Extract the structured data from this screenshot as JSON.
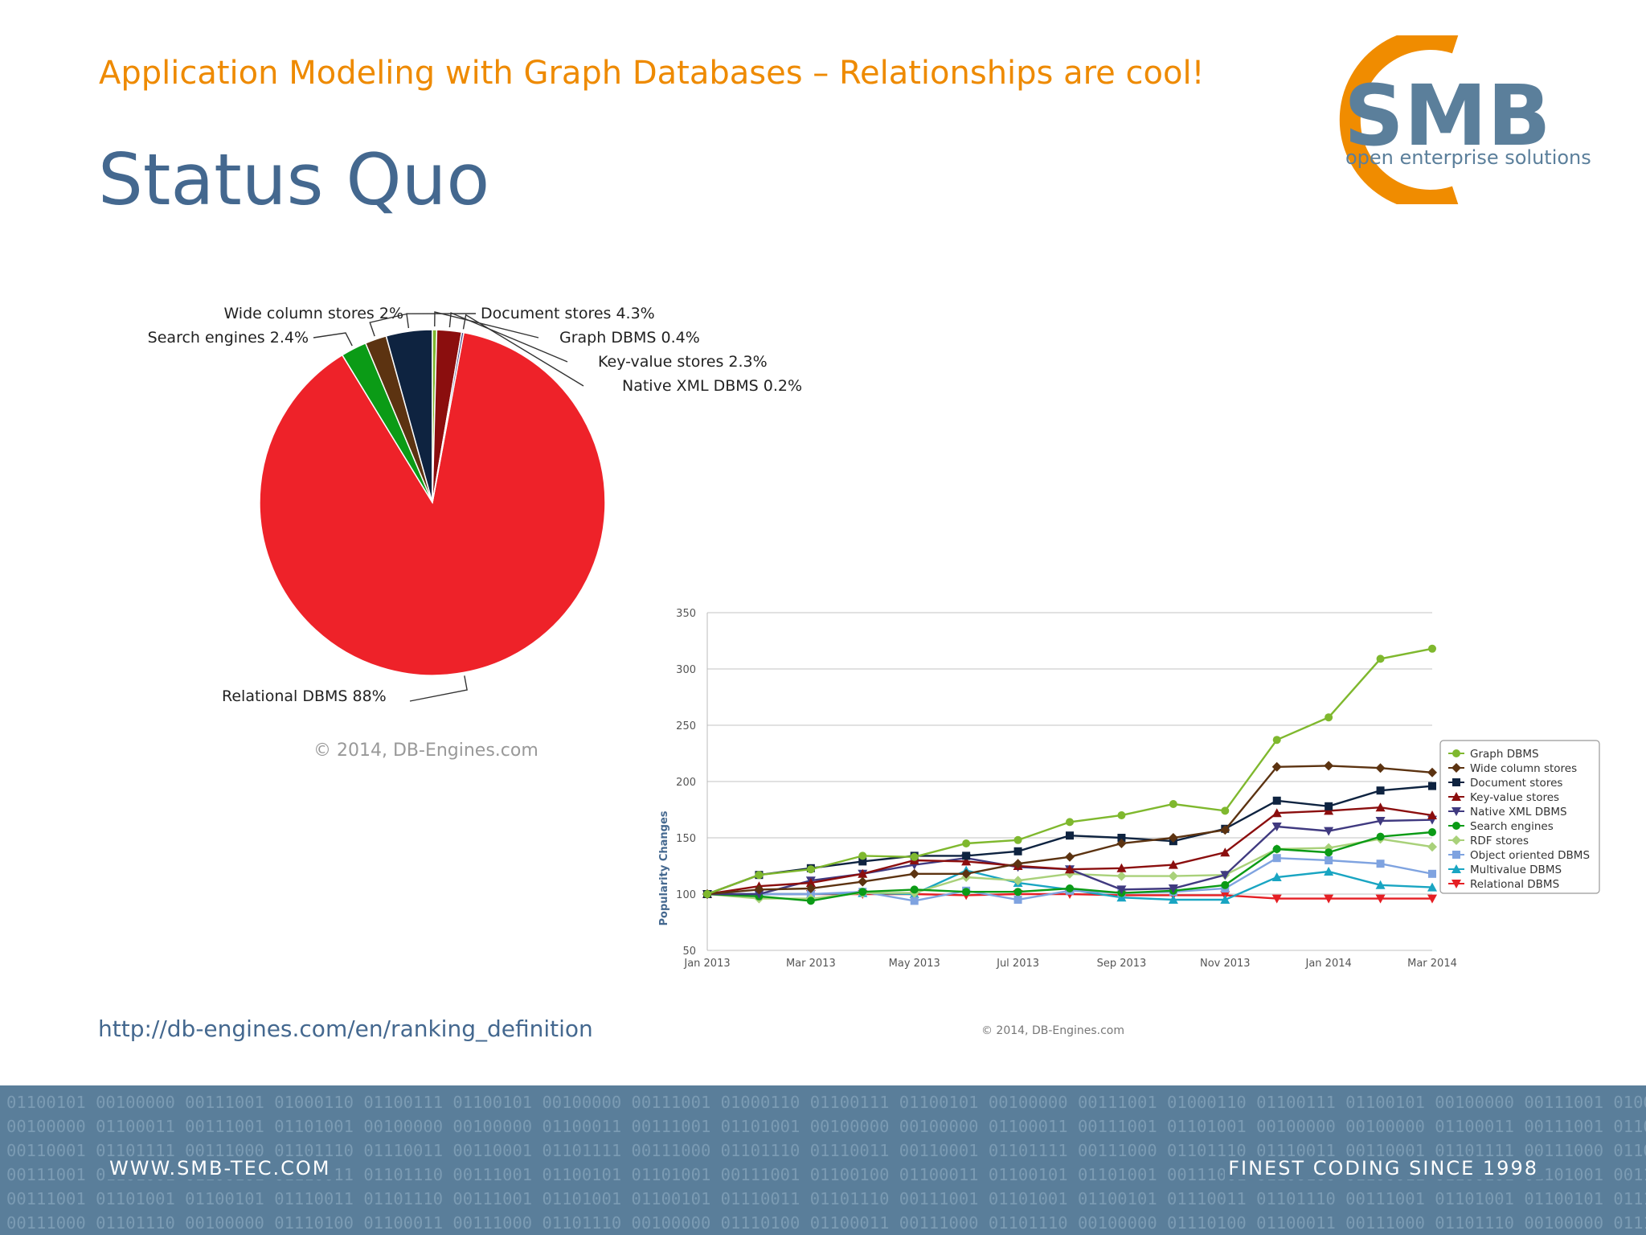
{
  "header": {
    "subtitle": "Application Modeling with Graph Databases – Relationships are cool!",
    "title": "Status Quo"
  },
  "logo": {
    "name": "SMB",
    "tagline": "open enterprise solutions",
    "colors": {
      "arc": "#f08c00",
      "text": "#5b7f9b"
    }
  },
  "source_url": "http://db-engines.com/en/ranking_definition",
  "footer": {
    "left": "WWW.SMB-TEC.COM",
    "right": "FINEST CODING SINCE 1998",
    "binary_lines": [
      "01100101 00100000 00111001 01000110 01100111 01100101 00100000 00111001 01000110 01100111 01100101 00100000 00111001 01000110 01100111 01100101 00100000 00111001 01000110 01100111 01100101",
      "00100000 01100011 00111001 01101001 00100000 00100000 01100011 00111001 01101001 00100000 00100000 01100011 00111001 01101001 00100000 00100000 01100011 00111001 01101001 00100000 00100000",
      "00110001 01101111 00111000 01101110 01110011 00110001 01101111 00111000 01101110 01110011 00110001 01101111 00111000 01101110 01110011 00110001 01101111 00111000 01101110 01110011 00110001",
      "00111001 01101001 01100101 01110011 01101110 00111001 01100101 01101001 00111001 01100100 01100011 01100101 01101001 00111001 01100100 01100011 01100101 01101001 00111001 01100100 00111001",
      "00111001 01101001 01100101 01110011 01101110 00111001 01101001 01100101 01110011 01101110 00111001 01101001 01100101 01110011 01101110 00111001 01101001 01100101 01110011 01101110 00111001",
      "00111000 01101110 00100000 01110100 01100011 00111000 01101110 00100000 01110100 01100011 00111000 01101110 00100000 01110100 01100011 00111000 01101110 00100000 01110100 01100011 00111000"
    ]
  },
  "chart_data": [
    {
      "type": "pie",
      "credit": "© 2014, DB-Engines.com",
      "slices": [
        {
          "label": "Relational DBMS 88%",
          "value": 88,
          "color": "#ee2229"
        },
        {
          "label": "Search engines 2.4%",
          "value": 2.4,
          "color": "#0b9b16"
        },
        {
          "label": "Wide column stores 2%",
          "value": 2,
          "color": "#5c3311"
        },
        {
          "label": "Document stores 4.3%",
          "value": 4.3,
          "color": "#0e2340"
        },
        {
          "label": "Graph DBMS 0.4%",
          "value": 0.4,
          "color": "#7fb82e"
        },
        {
          "label": "Key-value stores 2.3%",
          "value": 2.3,
          "color": "#8b0e0e"
        },
        {
          "label": "Native XML DBMS 0.2%",
          "value": 0.2,
          "color": "#403a80"
        }
      ]
    },
    {
      "type": "line",
      "ylabel": "Popularity Changes",
      "credit": "© 2014, DB-Engines.com",
      "ylim": [
        50,
        350
      ],
      "yticks": [
        50,
        100,
        150,
        200,
        250,
        300,
        350
      ],
      "x": [
        "Jan 2013",
        "Feb 2013",
        "Mar 2013",
        "Apr 2013",
        "May 2013",
        "Jun 2013",
        "Jul 2013",
        "Aug 2013",
        "Sep 2013",
        "Oct 2013",
        "Nov 2013",
        "Dec 2013",
        "Jan 2014",
        "Feb 2014",
        "Mar 2014"
      ],
      "xticks": [
        "Jan 2013",
        "Mar 2013",
        "May 2013",
        "Jul 2013",
        "Sep 2013",
        "Nov 2013",
        "Jan 2014",
        "Mar 2014"
      ],
      "grid": true,
      "legend": "right",
      "series": [
        {
          "name": "Graph DBMS",
          "color": "#7fb82e",
          "marker": "circle",
          "values": [
            100,
            117,
            122,
            134,
            133,
            145,
            148,
            164,
            170,
            180,
            174,
            237,
            257,
            309,
            318
          ]
        },
        {
          "name": "Wide column stores",
          "color": "#5c3311",
          "marker": "diamond",
          "values": [
            100,
            104,
            105,
            111,
            118,
            118,
            127,
            133,
            145,
            150,
            157,
            213,
            214,
            212,
            208
          ]
        },
        {
          "name": "Document stores",
          "color": "#0e2340",
          "marker": "square",
          "values": [
            100,
            117,
            123,
            129,
            134,
            134,
            138,
            152,
            150,
            147,
            158,
            183,
            178,
            192,
            196
          ]
        },
        {
          "name": "Key-value stores",
          "color": "#8b0e0e",
          "marker": "triangle",
          "values": [
            100,
            107,
            110,
            118,
            130,
            129,
            125,
            122,
            123,
            126,
            137,
            172,
            174,
            177,
            170
          ]
        },
        {
          "name": "Native XML DBMS",
          "color": "#403a80",
          "marker": "triangle-down",
          "values": [
            100,
            100,
            112,
            118,
            126,
            132,
            124,
            122,
            104,
            105,
            117,
            160,
            156,
            165,
            166
          ]
        },
        {
          "name": "Search engines",
          "color": "#0b9b16",
          "marker": "circle",
          "values": [
            100,
            98,
            94,
            102,
            104,
            102,
            102,
            105,
            101,
            103,
            108,
            140,
            137,
            151,
            155
          ]
        },
        {
          "name": "RDF stores",
          "color": "#a9d17a",
          "marker": "diamond",
          "values": [
            100,
            96,
            96,
            101,
            101,
            115,
            112,
            118,
            116,
            116,
            117,
            140,
            141,
            149,
            142
          ]
        },
        {
          "name": "Object oriented DBMS",
          "color": "#7fa3e0",
          "marker": "square",
          "values": [
            100,
            100,
            100,
            102,
            94,
            103,
            95,
            103,
            101,
            102,
            105,
            132,
            130,
            127,
            118
          ]
        },
        {
          "name": "Multivalue DBMS",
          "color": "#19a5c2",
          "marker": "triangle",
          "values": [
            100,
            100,
            100,
            101,
            100,
            121,
            110,
            104,
            97,
            95,
            95,
            115,
            120,
            108,
            106
          ]
        },
        {
          "name": "Relational DBMS",
          "color": "#e51f24",
          "marker": "triangle-down",
          "values": [
            100,
            100,
            100,
            100,
            100,
            99,
            100,
            100,
            99,
            99,
            99,
            96,
            96,
            96,
            96
          ]
        }
      ]
    }
  ]
}
